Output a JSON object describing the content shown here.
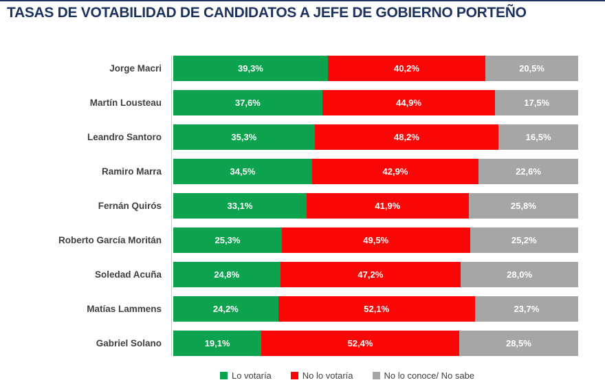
{
  "title": "TASAS DE VOTABILIDAD DE CANDIDATOS A JEFE DE GOBIERNO PORTEÑO",
  "colors": {
    "title": "#1E3260",
    "lo_votaria": "#0CA24E",
    "no_lo_votaria": "#F90606",
    "no_lo_conoce": "#A6A6A6",
    "axis_line": "#C9C9C9",
    "category_label": "#3F3F3F",
    "value_label": "#FFFFFF"
  },
  "chart_data": {
    "type": "bar",
    "orientation": "horizontal",
    "stacked": true,
    "stacked_to_100_percent": true,
    "grid": false,
    "legend_position": "bottom",
    "value_format": "percent, one decimal, comma as decimal separator",
    "categories": [
      "Jorge Macri",
      "Martín Lousteau",
      "Leandro Santoro",
      "Ramiro Marra",
      "Fernán Quirós",
      "Roberto García Moritán",
      "Soledad Acuña",
      "Matías Lammens",
      "Gabriel Solano"
    ],
    "series": [
      {
        "name": "Lo votaría",
        "color": "#0CA24E",
        "values": [
          39.3,
          37.6,
          35.3,
          34.5,
          33.1,
          25.3,
          24.8,
          24.2,
          19.1
        ],
        "display_values": [
          "39,3%",
          "37,6%",
          "35,3%",
          "34,5%",
          "33,1%",
          "25,3%",
          "24,8%",
          "24,2%",
          "19,1%"
        ]
      },
      {
        "name": "No lo votaría",
        "color": "#F90606",
        "values": [
          40.2,
          44.9,
          48.2,
          42.9,
          41.9,
          49.5,
          47.2,
          52.1,
          52.4
        ],
        "display_values": [
          "40,2%",
          "44,9%",
          "48,2%",
          "42,9%",
          "41,9%",
          "49,5%",
          "47,2%",
          "52,1%",
          "52,4%"
        ]
      },
      {
        "name": "No lo conoce/ No sabe",
        "color": "#A6A6A6",
        "values": [
          20.5,
          17.5,
          16.5,
          22.6,
          25.8,
          25.2,
          28.0,
          23.7,
          28.5
        ],
        "display_values": [
          "20,5%",
          "17,5%",
          "16,5%",
          "22,6%",
          "25,8%",
          "25,2%",
          "28,0%",
          "23,7%",
          "28,5%"
        ]
      }
    ]
  },
  "legend": {
    "items": [
      "Lo votaría",
      "No lo votaría",
      "No lo conoce/ No sabe"
    ]
  }
}
